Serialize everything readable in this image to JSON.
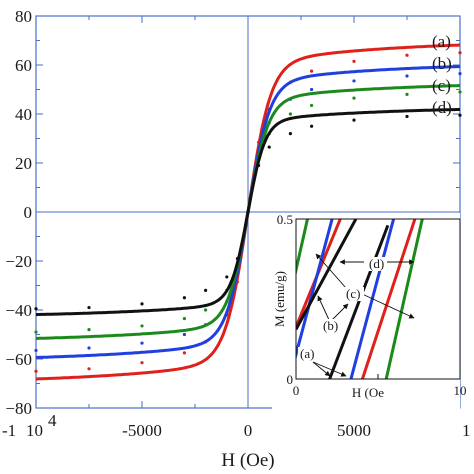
{
  "chart_data": [
    {
      "type": "line",
      "xlabel": "H (Oe)",
      "ylabel": "",
      "xlim": [
        -10000,
        10000
      ],
      "ylim": [
        -80,
        80
      ],
      "x_tick_labels": [
        "-1",
        "10",
        "4",
        "-5000",
        "0",
        "5000",
        "1"
      ],
      "y_ticks": [
        -80,
        -60,
        -40,
        -20,
        0,
        20,
        40,
        60,
        80
      ],
      "y_tick_labels": [
        "−80",
        "−60",
        "−40",
        "−20",
        "0",
        "20",
        "40",
        "60",
        "80"
      ],
      "grid": false,
      "series": [
        {
          "name": "(a)",
          "color": "#e0201b",
          "Ms": 70.0,
          "h0": 1050,
          "x": [
            -10000,
            -7500,
            -5000,
            -3000,
            -2000,
            -1000,
            -500,
            0,
            500,
            1000,
            2000,
            3000,
            5000,
            7500,
            10000
          ],
          "y": [
            -65.0,
            -64.0,
            -61.5,
            -57.5,
            -53.0,
            -42.0,
            -28.5,
            0.0,
            28.5,
            42.0,
            53.0,
            57.5,
            61.5,
            64.0,
            65.0
          ]
        },
        {
          "name": "(b)",
          "color": "#1f3fe0",
          "Ms": 61.0,
          "h0": 1000,
          "x": [
            -10000,
            -7500,
            -5000,
            -3000,
            -2000,
            -1000,
            -500,
            0,
            500,
            1000,
            2000,
            3000,
            5000,
            7500,
            10000
          ],
          "y": [
            -56.5,
            -55.5,
            -53.5,
            -50.0,
            -46.0,
            -36.5,
            -25.0,
            0.0,
            25.0,
            36.5,
            46.0,
            50.0,
            53.5,
            55.5,
            56.5
          ]
        },
        {
          "name": "(c)",
          "color": "#1b8a1b",
          "Ms": 53.0,
          "h0": 950,
          "x": [
            -10000,
            -7500,
            -5000,
            -3000,
            -2000,
            -1000,
            -500,
            0,
            500,
            1000,
            2000,
            3000,
            5000,
            7500,
            10000
          ],
          "y": [
            -49.0,
            -48.0,
            -46.5,
            -43.5,
            -40.0,
            -32.0,
            -22.0,
            0.0,
            22.0,
            32.0,
            40.0,
            43.5,
            46.5,
            48.0,
            49.0
          ]
        },
        {
          "name": "(d)",
          "color": "#111111",
          "Ms": 43.0,
          "h0": 800,
          "x": [
            -10000,
            -7500,
            -5000,
            -3000,
            -2000,
            -1000,
            -500,
            0,
            500,
            1000,
            2000,
            3000,
            5000,
            7500,
            10000
          ],
          "y": [
            -39.5,
            -39.0,
            -37.5,
            -35.0,
            -32.0,
            -26.5,
            -19.0,
            0.0,
            19.0,
            26.5,
            32.0,
            35.0,
            37.5,
            39.0,
            39.5
          ]
        }
      ]
    },
    {
      "type": "line",
      "xlabel": "H (Oe",
      "ylabel": "M (emu/g)",
      "xlim": [
        0,
        10
      ],
      "ylim": [
        0,
        0.5
      ],
      "x_ticks": [
        0,
        5,
        10
      ],
      "x_tick_labels": [
        "0",
        "",
        "10"
      ],
      "y_ticks": [
        0,
        0.5
      ],
      "y_tick_labels": [
        "0",
        "0.5"
      ],
      "annotations": [
        "(a)",
        "(b)",
        "(c)",
        "(d)"
      ],
      "series": [
        {
          "name": "(a)",
          "color": "#e0201b",
          "segments": [
            {
              "x": [
                -1.3,
                2.7
              ],
              "y": [
                0.0,
                0.5
              ]
            },
            {
              "x": [
                4.05,
                7.25
              ],
              "y": [
                0.0,
                0.5
              ]
            }
          ]
        },
        {
          "name": "(b)",
          "color": "#1f3fe0",
          "segments": [
            {
              "x": [
                -0.4,
                2.2
              ],
              "y": [
                0.0,
                0.5
              ]
            },
            {
              "x": [
                3.35,
                5.95
              ],
              "y": [
                0.0,
                0.5
              ]
            }
          ]
        },
        {
          "name": "(c)",
          "color": "#1b8a1b",
          "segments": [
            {
              "x": [
                -1.5,
                0.7
              ],
              "y": [
                0.0,
                0.5
              ]
            },
            {
              "x": [
                5.5,
                7.7
              ],
              "y": [
                0.0,
                0.5
              ]
            }
          ]
        },
        {
          "name": "(d)",
          "color": "#111111",
          "segments": [
            {
              "x": [
                0.0,
                3.65
              ],
              "y": [
                0.155,
                0.5
              ]
            },
            {
              "x": [
                2.05,
                5.6
              ],
              "y": [
                0.0,
                0.48
              ]
            }
          ]
        }
      ]
    }
  ]
}
